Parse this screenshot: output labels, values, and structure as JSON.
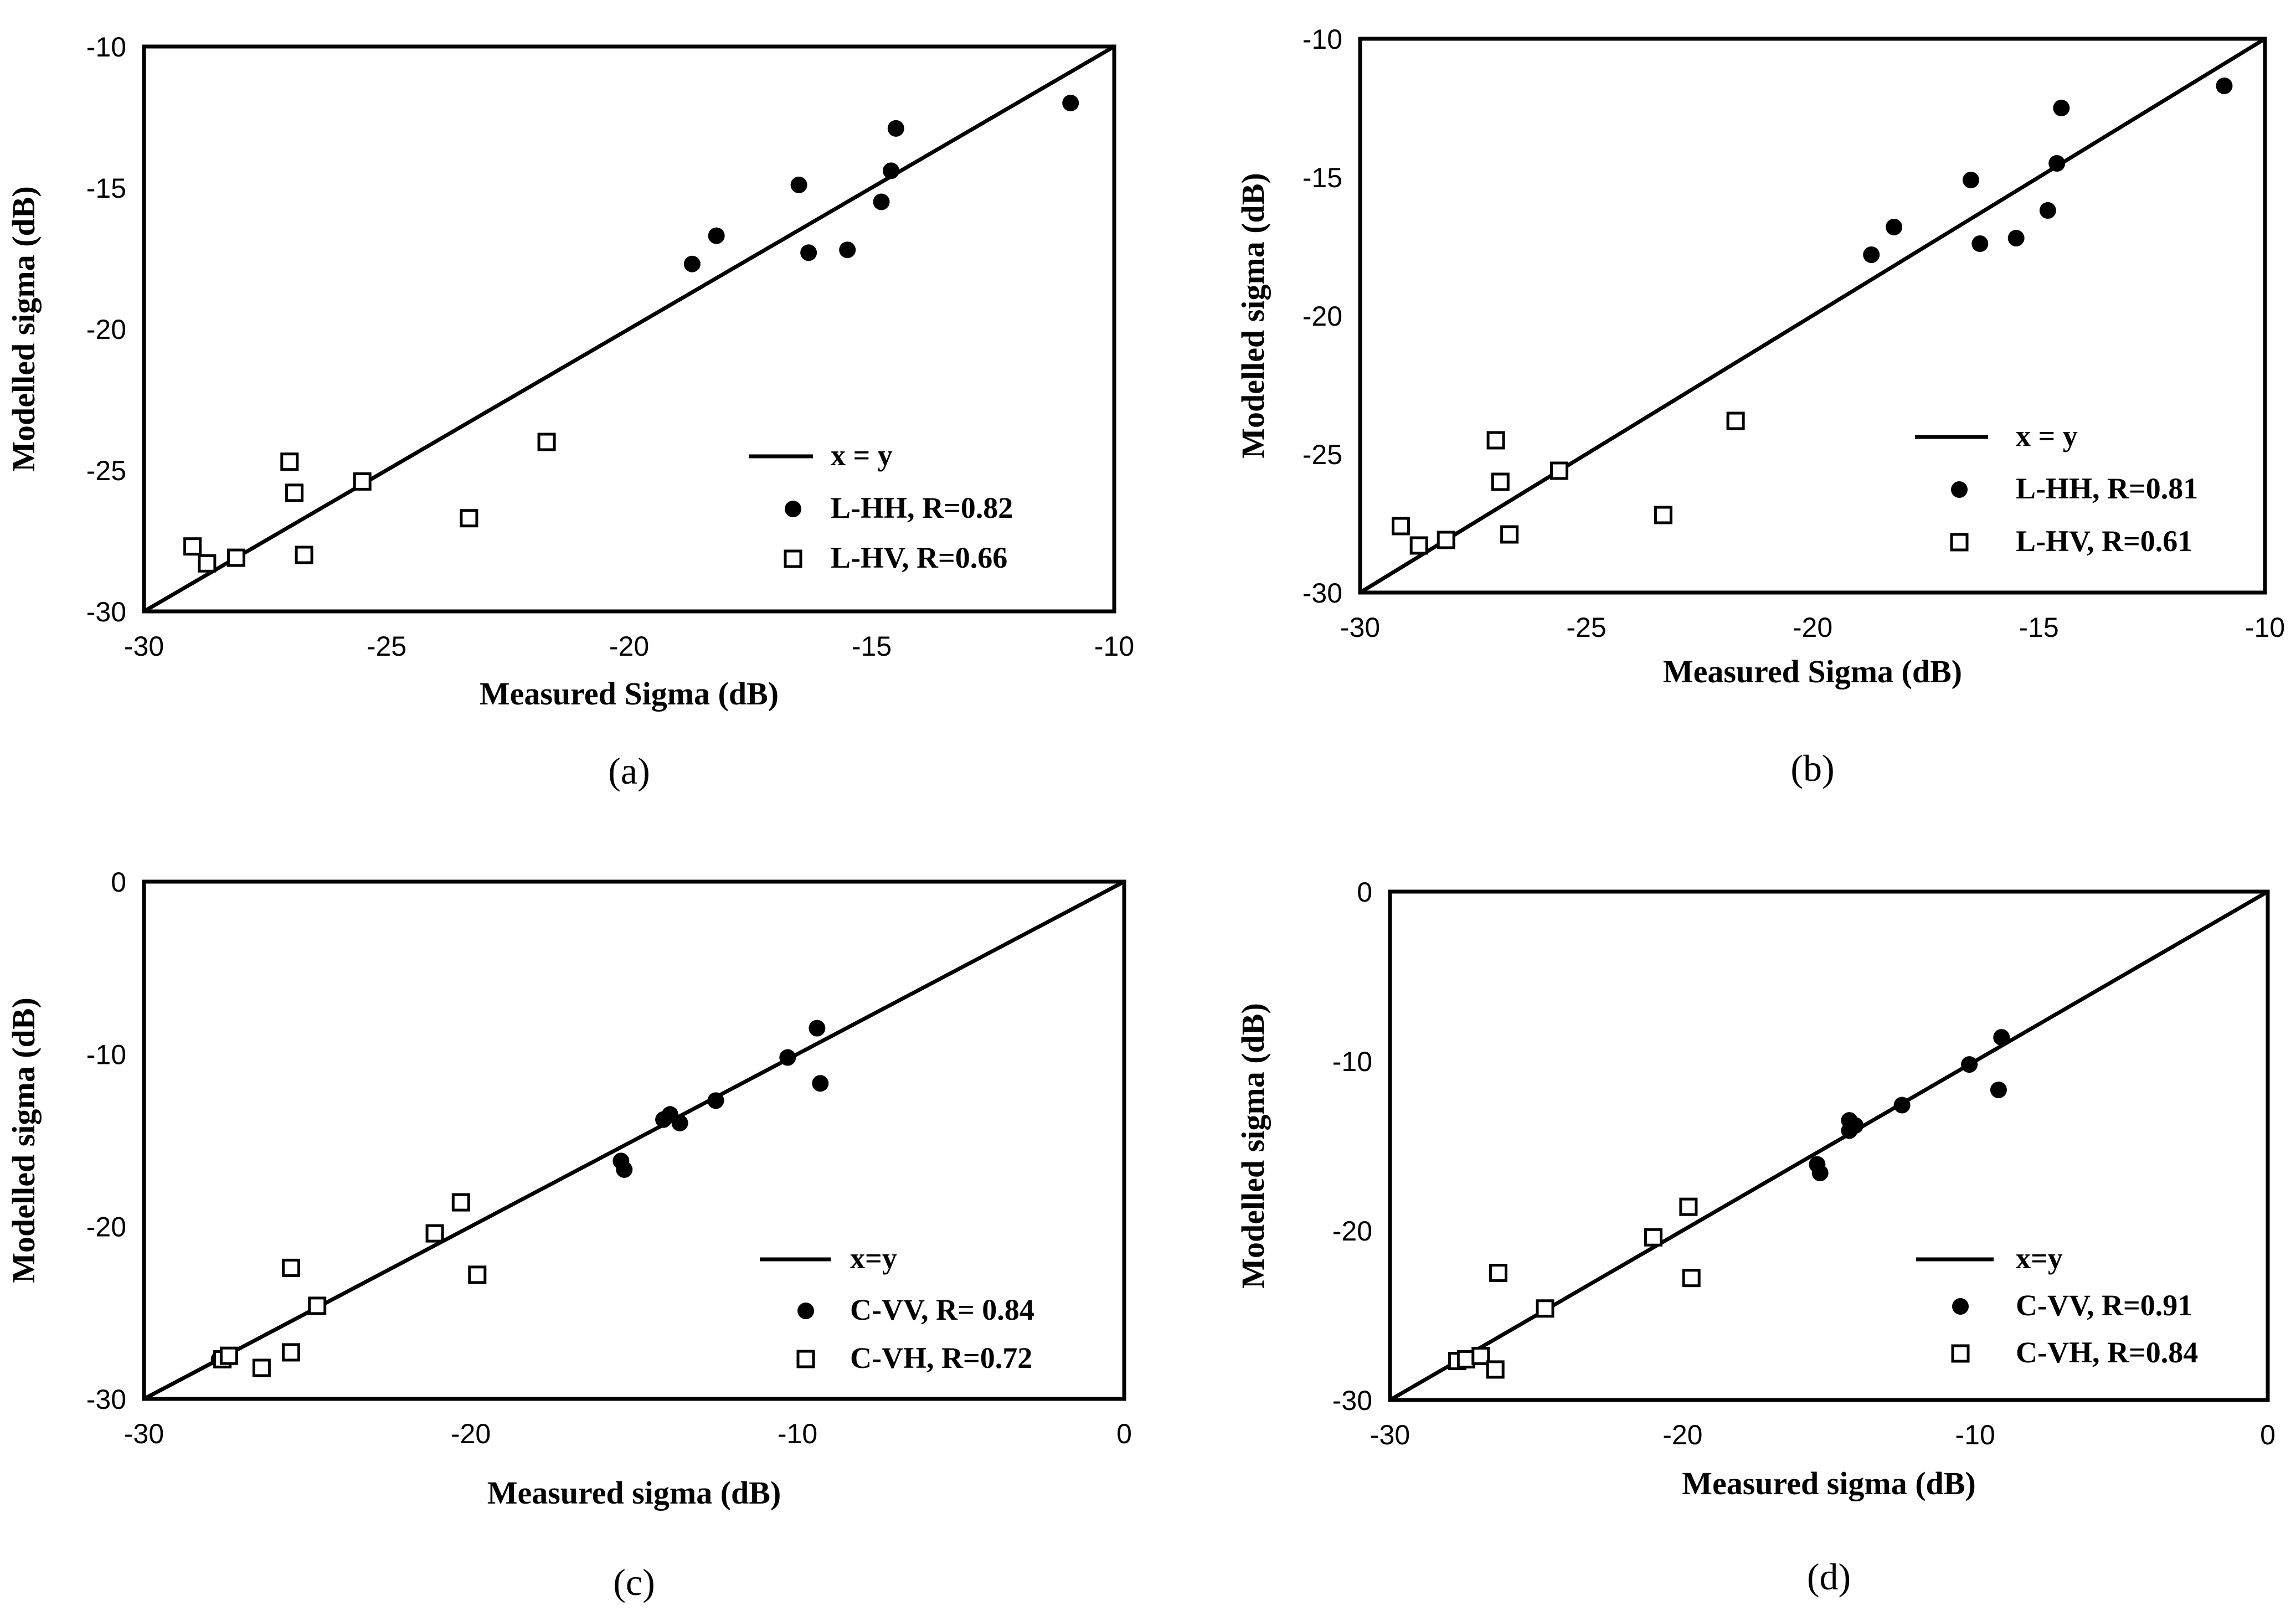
{
  "chart_data": [
    {
      "type": "scatter",
      "panel_label": "(a)",
      "xlabel": "Measured Sigma (dB)",
      "ylabel": "Modelled sigma (dB)",
      "xlim": [
        -30,
        -10
      ],
      "ylim": [
        -30,
        -10
      ],
      "xticks": [
        -30,
        -25,
        -20,
        -15,
        -10
      ],
      "yticks": [
        -30,
        -25,
        -20,
        -15,
        -10
      ],
      "reference_line": {
        "label": "x = y",
        "from": [
          -30,
          -30
        ],
        "to": [
          -10,
          -10
        ]
      },
      "series": [
        {
          "name": "L-HH, R=0.82",
          "marker": "filled-circle",
          "points": [
            [
              -18.7,
              -17.7
            ],
            [
              -18.2,
              -16.7
            ],
            [
              -16.5,
              -14.9
            ],
            [
              -16.3,
              -17.3
            ],
            [
              -15.5,
              -17.2
            ],
            [
              -14.8,
              -15.5
            ],
            [
              -14.6,
              -14.4
            ],
            [
              -14.5,
              -12.9
            ],
            [
              -10.9,
              -12.0
            ]
          ]
        },
        {
          "name": "L-HV, R=0.66",
          "marker": "open-square",
          "points": [
            [
              -29.0,
              -27.7
            ],
            [
              -28.7,
              -28.3
            ],
            [
              -28.1,
              -28.1
            ],
            [
              -27.0,
              -24.7
            ],
            [
              -26.9,
              -25.8
            ],
            [
              -26.7,
              -28.0
            ],
            [
              -25.5,
              -25.4
            ],
            [
              -23.3,
              -26.7
            ],
            [
              -21.7,
              -24.0
            ]
          ]
        }
      ]
    },
    {
      "type": "scatter",
      "panel_label": "(b)",
      "xlabel": "Measured Sigma (dB)",
      "ylabel": "Modelled sigma (dB)",
      "xlim": [
        -30,
        -10
      ],
      "ylim": [
        -30,
        -10
      ],
      "xticks": [
        -30,
        -25,
        -20,
        -15,
        -10
      ],
      "yticks": [
        -30,
        -25,
        -20,
        -15,
        -10
      ],
      "reference_line": {
        "label": "x = y",
        "from": [
          -30,
          -30
        ],
        "to": [
          -10,
          -10
        ]
      },
      "series": [
        {
          "name": "L-HH, R=0.81",
          "marker": "filled-circle",
          "points": [
            [
              -18.7,
              -17.8
            ],
            [
              -18.2,
              -16.8
            ],
            [
              -16.5,
              -15.1
            ],
            [
              -16.3,
              -17.4
            ],
            [
              -15.5,
              -17.2
            ],
            [
              -14.8,
              -16.2
            ],
            [
              -14.6,
              -14.5
            ],
            [
              -14.5,
              -12.5
            ],
            [
              -10.9,
              -11.7
            ]
          ]
        },
        {
          "name": "L-HV, R=0.61",
          "marker": "open-square",
          "points": [
            [
              -29.1,
              -27.6
            ],
            [
              -28.7,
              -28.3
            ],
            [
              -28.1,
              -28.1
            ],
            [
              -27.0,
              -24.5
            ],
            [
              -26.9,
              -26.0
            ],
            [
              -26.7,
              -27.9
            ],
            [
              -25.6,
              -25.6
            ],
            [
              -23.3,
              -27.2
            ],
            [
              -21.7,
              -23.8
            ]
          ]
        }
      ]
    },
    {
      "type": "scatter",
      "panel_label": "(c)",
      "xlabel": "Measured sigma (dB)",
      "ylabel": "Modelled sigma (dB)",
      "xlim": [
        -30,
        0
      ],
      "ylim": [
        -30,
        0
      ],
      "xticks": [
        -30,
        -20,
        -10,
        0
      ],
      "yticks": [
        -30,
        -20,
        -10,
        0
      ],
      "reference_line": {
        "label": "x=y",
        "from": [
          -30,
          -30
        ],
        "to": [
          0,
          0
        ]
      },
      "series": [
        {
          "name": "C-VV, R= 0.84",
          "marker": "filled-circle",
          "points": [
            [
              -27.7,
              -27.7
            ],
            [
              -15.4,
              -16.2
            ],
            [
              -15.3,
              -16.7
            ],
            [
              -14.1,
              -13.8
            ],
            [
              -13.9,
              -13.5
            ],
            [
              -13.6,
              -14.0
            ],
            [
              -12.5,
              -12.7
            ],
            [
              -10.3,
              -10.2
            ],
            [
              -9.4,
              -8.5
            ],
            [
              -9.3,
              -11.7
            ]
          ]
        },
        {
          "name": "C-VH, R=0.72",
          "marker": "open-square",
          "points": [
            [
              -27.6,
              -27.7
            ],
            [
              -27.4,
              -27.5
            ],
            [
              -26.4,
              -28.2
            ],
            [
              -25.5,
              -22.4
            ],
            [
              -25.5,
              -27.3
            ],
            [
              -24.7,
              -24.6
            ],
            [
              -21.1,
              -20.4
            ],
            [
              -20.3,
              -18.6
            ],
            [
              -19.8,
              -22.8
            ]
          ]
        }
      ]
    },
    {
      "type": "scatter",
      "panel_label": "(d)",
      "xlabel": "Measured sigma (dB)",
      "ylabel": "Modelled sigma (dB)",
      "xlim": [
        -30,
        0
      ],
      "ylim": [
        -30,
        0
      ],
      "xticks": [
        -30,
        -20,
        -10,
        0
      ],
      "yticks": [
        -30,
        -20,
        -10,
        0
      ],
      "reference_line": {
        "label": "x=y",
        "from": [
          -30,
          -30
        ],
        "to": [
          0,
          0
        ]
      },
      "series": [
        {
          "name": "C-VV, R=0.91",
          "marker": "filled-circle",
          "points": [
            [
              -27.7,
              -27.7
            ],
            [
              -15.4,
              -16.1
            ],
            [
              -15.3,
              -16.6
            ],
            [
              -14.3,
              -13.5
            ],
            [
              -14.3,
              -14.1
            ],
            [
              -14.1,
              -13.8
            ],
            [
              -12.5,
              -12.6
            ],
            [
              -10.2,
              -10.2
            ],
            [
              -9.1,
              -8.6
            ],
            [
              -9.2,
              -11.7
            ]
          ]
        },
        {
          "name": "C-VH, R=0.84",
          "marker": "open-square",
          "points": [
            [
              -27.7,
              -27.7
            ],
            [
              -27.4,
              -27.6
            ],
            [
              -26.9,
              -27.4
            ],
            [
              -26.4,
              -28.2
            ],
            [
              -26.3,
              -22.5
            ],
            [
              -24.7,
              -24.6
            ],
            [
              -21.0,
              -20.4
            ],
            [
              -19.8,
              -18.6
            ],
            [
              -19.7,
              -22.8
            ]
          ]
        }
      ]
    }
  ]
}
